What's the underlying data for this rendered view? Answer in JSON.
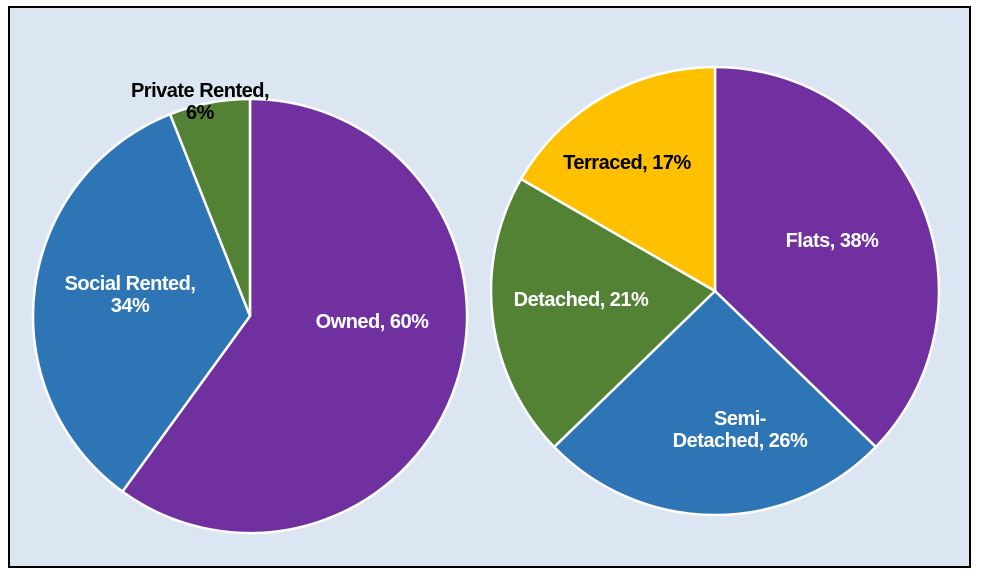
{
  "chart_data": [
    {
      "type": "pie",
      "values": [
        60,
        34,
        6
      ],
      "value_labels": [
        "Owned, 60%",
        "Social Rented,\n34%",
        "Private Rented,\n6%"
      ],
      "colors": [
        "#7030a0",
        "#2e75b6",
        "#548235"
      ]
    },
    {
      "type": "pie",
      "values": [
        38,
        26,
        21,
        17
      ],
      "value_labels": [
        "Flats, 38%",
        "Semi-\nDetached, 26%",
        "Detached, 21%",
        "Terraced, 17%"
      ],
      "colors": [
        "#7030a0",
        "#2e75b6",
        "#548235",
        "#ffc000"
      ]
    }
  ]
}
